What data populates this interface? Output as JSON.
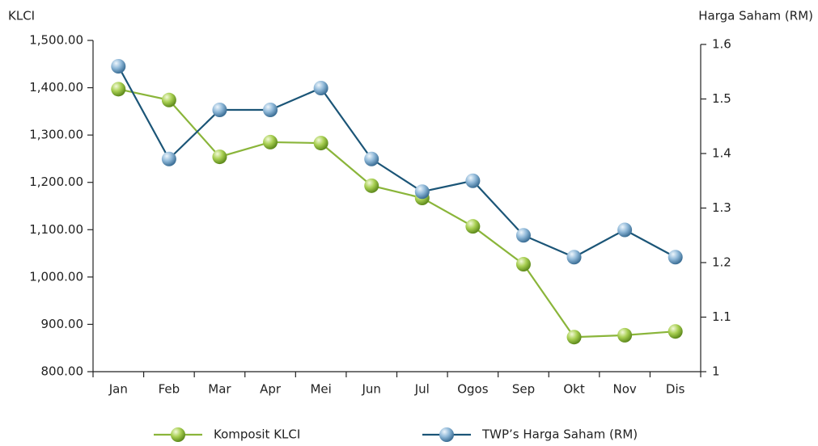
{
  "chart_data": {
    "type": "line",
    "y_label": "KLCI",
    "y2_label": "Harga Saham (RM)",
    "categories": [
      "Jan",
      "Feb",
      "Mar",
      "Apr",
      "Mei",
      "Jun",
      "Jul",
      "Ogos",
      "Sep",
      "Okt",
      "Nov",
      "Dis"
    ],
    "series": [
      {
        "name": "Komposit KLCI",
        "color": "#8ab53a",
        "values": [
          1397,
          1374,
          1254,
          1285,
          1283,
          1193,
          1167,
          1107,
          1027,
          873,
          877,
          885
        ]
      },
      {
        "name": "TWP’s Harga Saham (RM)",
        "color": "#1b5577",
        "axis": "y2",
        "values": [
          1.56,
          1.39,
          1.48,
          1.48,
          1.52,
          1.39,
          1.33,
          1.35,
          1.25,
          1.21,
          1.26,
          1.21
        ]
      }
    ],
    "ylim": [
      800,
      1500
    ],
    "yticks": [
      {
        "value": 800,
        "label": "800.00"
      },
      {
        "value": 900,
        "label": "900.00"
      },
      {
        "value": 1000,
        "label": "1,000.00"
      },
      {
        "value": 1100,
        "label": "1,100.00"
      },
      {
        "value": 1200,
        "label": "1,200.00"
      },
      {
        "value": 1300,
        "label": "1,300.00"
      },
      {
        "value": 1400,
        "label": "1,400.00"
      },
      {
        "value": 1500,
        "label": "1,500.00"
      }
    ],
    "y2lim": [
      1,
      1.6
    ],
    "y2ticks": [
      1,
      1.1,
      1.2,
      1.3,
      1.4,
      1.5,
      1.6
    ],
    "legend": "bottom"
  }
}
